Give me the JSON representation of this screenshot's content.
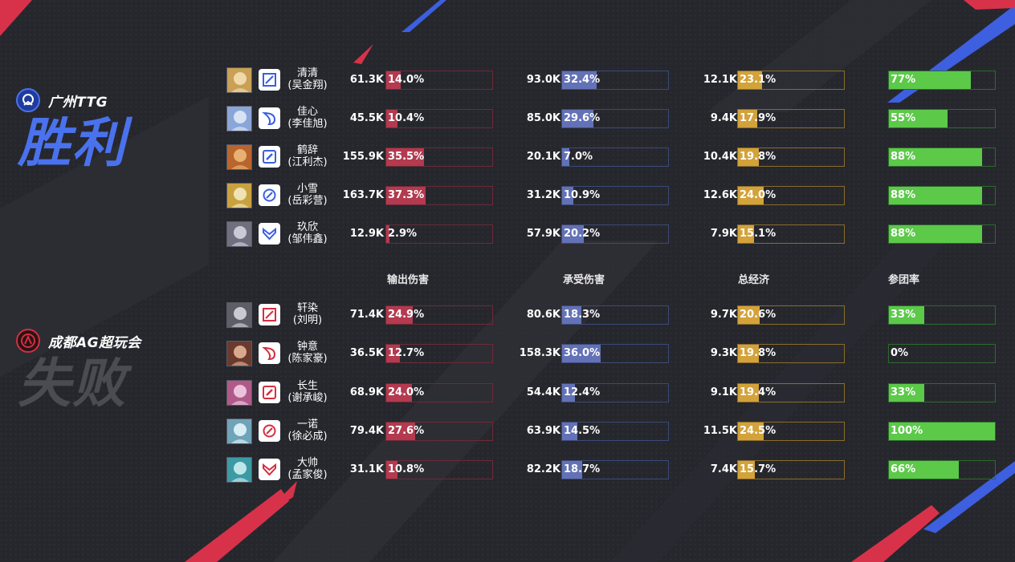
{
  "colors": {
    "win_blue": "#4a72ee",
    "lose_grey": "#4b4c52",
    "damage_bar": "#b33a4f",
    "taken_bar": "#6372b6",
    "economy_bar": "#d3a23a",
    "participation_bar": "#5cc949",
    "team_ttg_role": "#3a5fe0",
    "team_ag_role": "#d32f3f"
  },
  "teams": [
    {
      "name": "广州TTG",
      "result": "胜利",
      "logo_icon": "ttg-logo-icon"
    },
    {
      "name": "成都AG超玩会",
      "result": "失败",
      "logo_icon": "ag-logo-icon"
    }
  ],
  "headers": {
    "damage": "输出伤害",
    "taken": "承受伤害",
    "economy": "总经济",
    "participation": "参团率"
  },
  "players": [
    {
      "team": 0,
      "name": "清清",
      "real": "(吴金翔)",
      "role_icon": "top-lane-icon",
      "damage": "61.3K",
      "damage_pct": "14.0%",
      "taken": "93.0K",
      "taken_pct": "32.4%",
      "economy": "12.1K",
      "economy_pct": "23.1%",
      "participation": "77%"
    },
    {
      "team": 0,
      "name": "佳心",
      "real": "(李佳旭)",
      "role_icon": "jungle-icon",
      "damage": "45.5K",
      "damage_pct": "10.4%",
      "taken": "85.0K",
      "taken_pct": "29.6%",
      "economy": "9.4K",
      "economy_pct": "17.9%",
      "participation": "55%"
    },
    {
      "team": 0,
      "name": "鹤辞",
      "real": "(江利杰)",
      "role_icon": "mid-lane-icon",
      "damage": "155.9K",
      "damage_pct": "35.5%",
      "taken": "20.1K",
      "taken_pct": "7.0%",
      "economy": "10.4K",
      "economy_pct": "19.8%",
      "participation": "88%"
    },
    {
      "team": 0,
      "name": "小雪",
      "real": "(岳彩营)",
      "role_icon": "bot-lane-icon",
      "damage": "163.7K",
      "damage_pct": "37.3%",
      "taken": "31.2K",
      "taken_pct": "10.9%",
      "economy": "12.6K",
      "economy_pct": "24.0%",
      "participation": "88%"
    },
    {
      "team": 0,
      "name": "玖欣",
      "real": "(邹伟鑫)",
      "role_icon": "support-icon",
      "damage": "12.9K",
      "damage_pct": "2.9%",
      "taken": "57.9K",
      "taken_pct": "20.2%",
      "economy": "7.9K",
      "economy_pct": "15.1%",
      "participation": "88%"
    },
    {
      "team": 1,
      "name": "轩染",
      "real": "(刘明)",
      "role_icon": "top-lane-icon",
      "damage": "71.4K",
      "damage_pct": "24.9%",
      "taken": "80.6K",
      "taken_pct": "18.3%",
      "economy": "9.7K",
      "economy_pct": "20.6%",
      "participation": "33%"
    },
    {
      "team": 1,
      "name": "钟意",
      "real": "(陈家豪)",
      "role_icon": "jungle-icon",
      "damage": "36.5K",
      "damage_pct": "12.7%",
      "taken": "158.3K",
      "taken_pct": "36.0%",
      "economy": "9.3K",
      "economy_pct": "19.8%",
      "participation": "0%"
    },
    {
      "team": 1,
      "name": "长生",
      "real": "(谢承峻)",
      "role_icon": "mid-lane-icon",
      "damage": "68.9K",
      "damage_pct": "24.0%",
      "taken": "54.4K",
      "taken_pct": "12.4%",
      "economy": "9.1K",
      "economy_pct": "19.4%",
      "participation": "33%"
    },
    {
      "team": 1,
      "name": "一诺",
      "real": "(徐必成)",
      "role_icon": "bot-lane-icon",
      "damage": "79.4K",
      "damage_pct": "27.6%",
      "taken": "63.9K",
      "taken_pct": "14.5%",
      "economy": "11.5K",
      "economy_pct": "24.5%",
      "participation": "100%"
    },
    {
      "team": 1,
      "name": "大帅",
      "real": "(孟家俊)",
      "role_icon": "support-icon",
      "damage": "31.1K",
      "damage_pct": "10.8%",
      "taken": "82.2K",
      "taken_pct": "18.7%",
      "economy": "7.4K",
      "economy_pct": "15.7%",
      "participation": "66%"
    }
  ]
}
